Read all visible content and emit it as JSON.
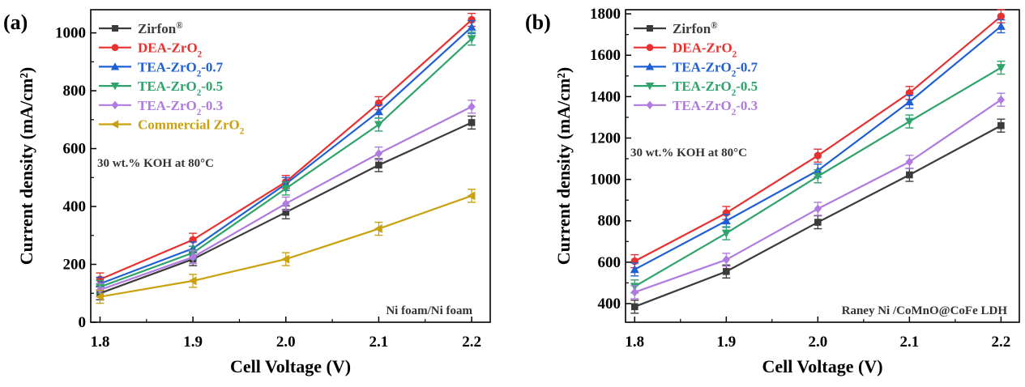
{
  "panels": [
    {
      "panel_label": "(a)",
      "chart_data": {
        "type": "line",
        "xlabel": "Cell Voltage (V)",
        "ylabel": "Current density (mA/cm²)",
        "x": [
          1.8,
          1.9,
          2.0,
          2.1,
          2.2
        ],
        "x_ticks": [
          "1.8",
          "1.9",
          "2.0",
          "2.1",
          "2.2"
        ],
        "xlim": [
          1.79,
          2.22
        ],
        "ylim": [
          0,
          1080
        ],
        "y_ticks": [
          0,
          200,
          400,
          600,
          800,
          1000
        ],
        "annotations": [
          "30 wt.% KOH at 80°C",
          "Ni foam/Ni foam"
        ],
        "legend_position": "top-left",
        "series": [
          {
            "name": "Zirfon",
            "name_sup": "®",
            "name_sub": "",
            "name_tail": "",
            "color": "#3b3b3b",
            "marker": "square",
            "values": [
              100,
              218,
              380,
              543,
              690
            ]
          },
          {
            "name": "DEA-ZrO",
            "name_sup": "",
            "name_sub": "2",
            "name_tail": "",
            "color": "#e8302f",
            "marker": "circle",
            "values": [
              148,
              285,
              485,
              757,
              1045
            ]
          },
          {
            "name": "TEA-ZrO",
            "name_sup": "",
            "name_sub": "2",
            "name_tail": "-0.7",
            "color": "#1f5fd6",
            "marker": "triangle-up",
            "values": [
              133,
              255,
              478,
              728,
              1020
            ]
          },
          {
            "name": "TEA-ZrO",
            "name_sup": "",
            "name_sub": "2",
            "name_tail": "-0.5",
            "color": "#2ea36a",
            "marker": "triangle-down",
            "values": [
              122,
              240,
              462,
              683,
              980
            ]
          },
          {
            "name": "TEA-ZrO",
            "name_sup": "",
            "name_sub": "2",
            "name_tail": "-0.3",
            "color": "#b07be0",
            "marker": "diamond",
            "values": [
              112,
              225,
              410,
              583,
              745
            ]
          },
          {
            "name": "Commercial ZrO",
            "name_sup": "",
            "name_sub": "2",
            "name_tail": "",
            "color": "#c9a00e",
            "marker": "triangle-left",
            "values": [
              88,
              143,
              218,
              323,
              437
            ]
          }
        ]
      }
    },
    {
      "panel_label": "(b)",
      "chart_data": {
        "type": "line",
        "xlabel": "Cell Voltage (V)",
        "ylabel": "Current density (mA/cm²)",
        "x": [
          1.8,
          1.9,
          2.0,
          2.1,
          2.2
        ],
        "x_ticks": [
          "1.8",
          "1.9",
          "2.0",
          "2.1",
          "2.2"
        ],
        "xlim": [
          1.79,
          2.22
        ],
        "ylim": [
          310,
          1820
        ],
        "y_ticks": [
          400,
          600,
          800,
          1000,
          1200,
          1400,
          1600,
          1800
        ],
        "annotations": [
          "30 wt.% KOH at 80°C",
          "Raney Ni /CoMnO@CoFe LDH"
        ],
        "legend_position": "top-left",
        "series": [
          {
            "name": "Zirfon",
            "name_sup": "®",
            "name_sub": "",
            "name_tail": "",
            "color": "#3b3b3b",
            "marker": "square",
            "values": [
              385,
              555,
              793,
              1022,
              1260
            ]
          },
          {
            "name": "DEA-ZrO",
            "name_sup": "",
            "name_sub": "2",
            "name_tail": "",
            "color": "#e8302f",
            "marker": "circle",
            "values": [
              605,
              838,
              1115,
              1418,
              1788
            ]
          },
          {
            "name": "TEA-ZrO",
            "name_sup": "",
            "name_sub": "2",
            "name_tail": "-0.7",
            "color": "#1f5fd6",
            "marker": "triangle-up",
            "values": [
              565,
              800,
              1043,
              1375,
              1740
            ]
          },
          {
            "name": "TEA-ZrO",
            "name_sup": "",
            "name_sub": "2",
            "name_tail": "-0.5",
            "color": "#2ea36a",
            "marker": "triangle-down",
            "values": [
              483,
              740,
              1015,
              1280,
              1540
            ]
          },
          {
            "name": "TEA-ZrO",
            "name_sup": "",
            "name_sub": "2",
            "name_tail": "-0.3",
            "color": "#b07be0",
            "marker": "diamond",
            "values": [
              455,
              612,
              858,
              1085,
              1385
            ]
          }
        ]
      }
    }
  ]
}
